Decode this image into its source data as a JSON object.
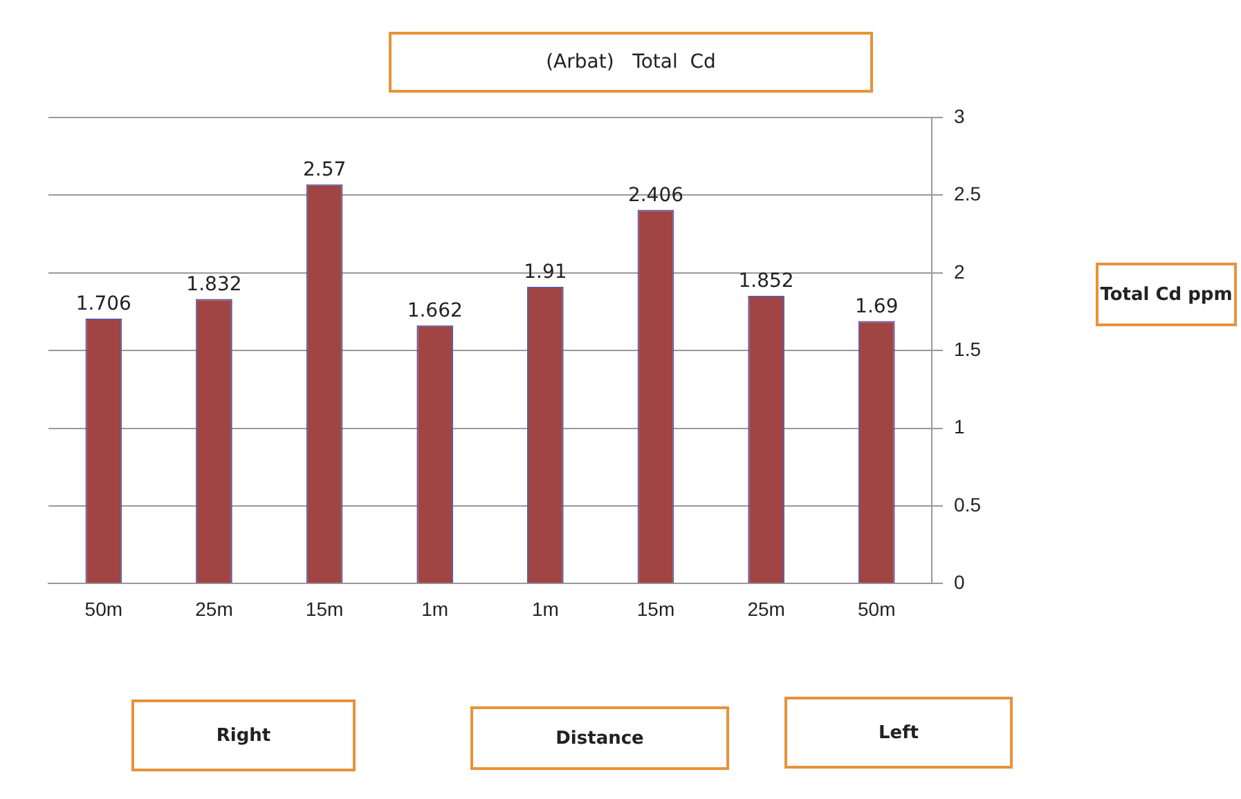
{
  "chart_data": {
    "type": "bar",
    "title": "(Arbat)   Total  Cd",
    "categories": [
      "50m",
      "25m",
      "15m",
      "1m",
      "1m",
      "15m",
      "25m",
      "50m"
    ],
    "values": [
      1.706,
      1.832,
      2.57,
      1.662,
      1.91,
      2.406,
      1.852,
      1.69
    ],
    "color": "#a04444",
    "ylim": [
      0,
      3
    ],
    "yticks": [
      0,
      0.5,
      1,
      1.5,
      2,
      2.5,
      3
    ],
    "grid": "y",
    "data_labels": true,
    "annotations": [
      "Total Cd ppm",
      "Right",
      "Distance",
      "Left"
    ]
  }
}
